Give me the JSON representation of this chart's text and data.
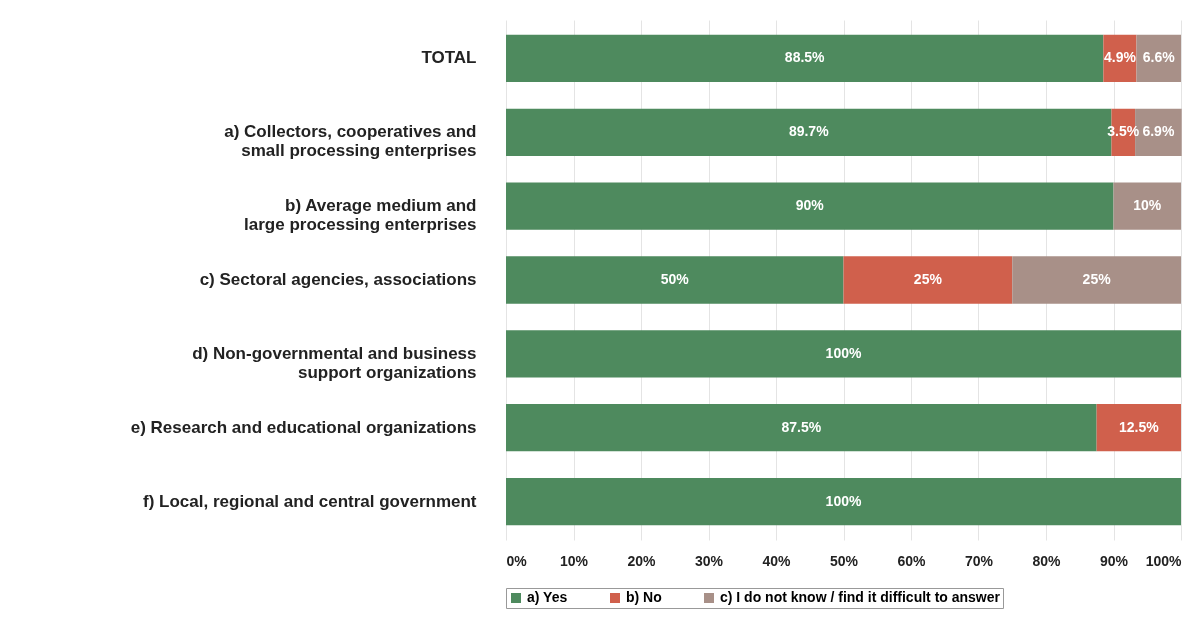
{
  "chart_data": {
    "type": "bar",
    "orientation": "horizontal",
    "stacked": true,
    "grid": "x",
    "legend": "bottom",
    "categories": [
      "TOTAL",
      "a) Collectors, cooperatives and\nsmall processing enterprises",
      "b) Average medium and\nlarge processing enterprises",
      "c) Sectoral agencies, associations",
      "d) Non-governmental and business\nsupport organizations",
      "e) Research and educational organizations",
      "f) Local, regional and central government"
    ],
    "xlim": [
      0,
      100
    ],
    "xticks": [
      {
        "value": 0,
        "label": "0%"
      },
      {
        "value": 10,
        "label": "10%"
      },
      {
        "value": 20,
        "label": "20%"
      },
      {
        "value": 30,
        "label": "30%"
      },
      {
        "value": 40,
        "label": "40%"
      },
      {
        "value": 50,
        "label": "50%"
      },
      {
        "value": 60,
        "label": "60%"
      },
      {
        "value": 70,
        "label": "70%"
      },
      {
        "value": 80,
        "label": "80%"
      },
      {
        "value": 90,
        "label": "90%"
      },
      {
        "value": 100,
        "label": "100%"
      }
    ],
    "series": [
      {
        "name": "a) Yes",
        "color": "#4e8a5e",
        "values": [
          88.5,
          89.7,
          90,
          50,
          100,
          87.5,
          100
        ],
        "value_labels": [
          "88.5%",
          "89.7%",
          "90%",
          "50%",
          "100%",
          "87.5%",
          "100%"
        ]
      },
      {
        "name": "b) No",
        "color": "#d0604c",
        "values": [
          4.9,
          3.5,
          null,
          25,
          null,
          12.5,
          null
        ],
        "value_labels": [
          "4.9%",
          "3.5%",
          null,
          "25%",
          null,
          "12.5%",
          null
        ]
      },
      {
        "name": "c) I do not know / find it difficult to answer",
        "color": "#a89088",
        "values": [
          6.6,
          6.9,
          10,
          25,
          null,
          null,
          null
        ],
        "value_labels": [
          "6.6%",
          "6.9%",
          "10%",
          "25%",
          null,
          null,
          null
        ]
      }
    ]
  }
}
